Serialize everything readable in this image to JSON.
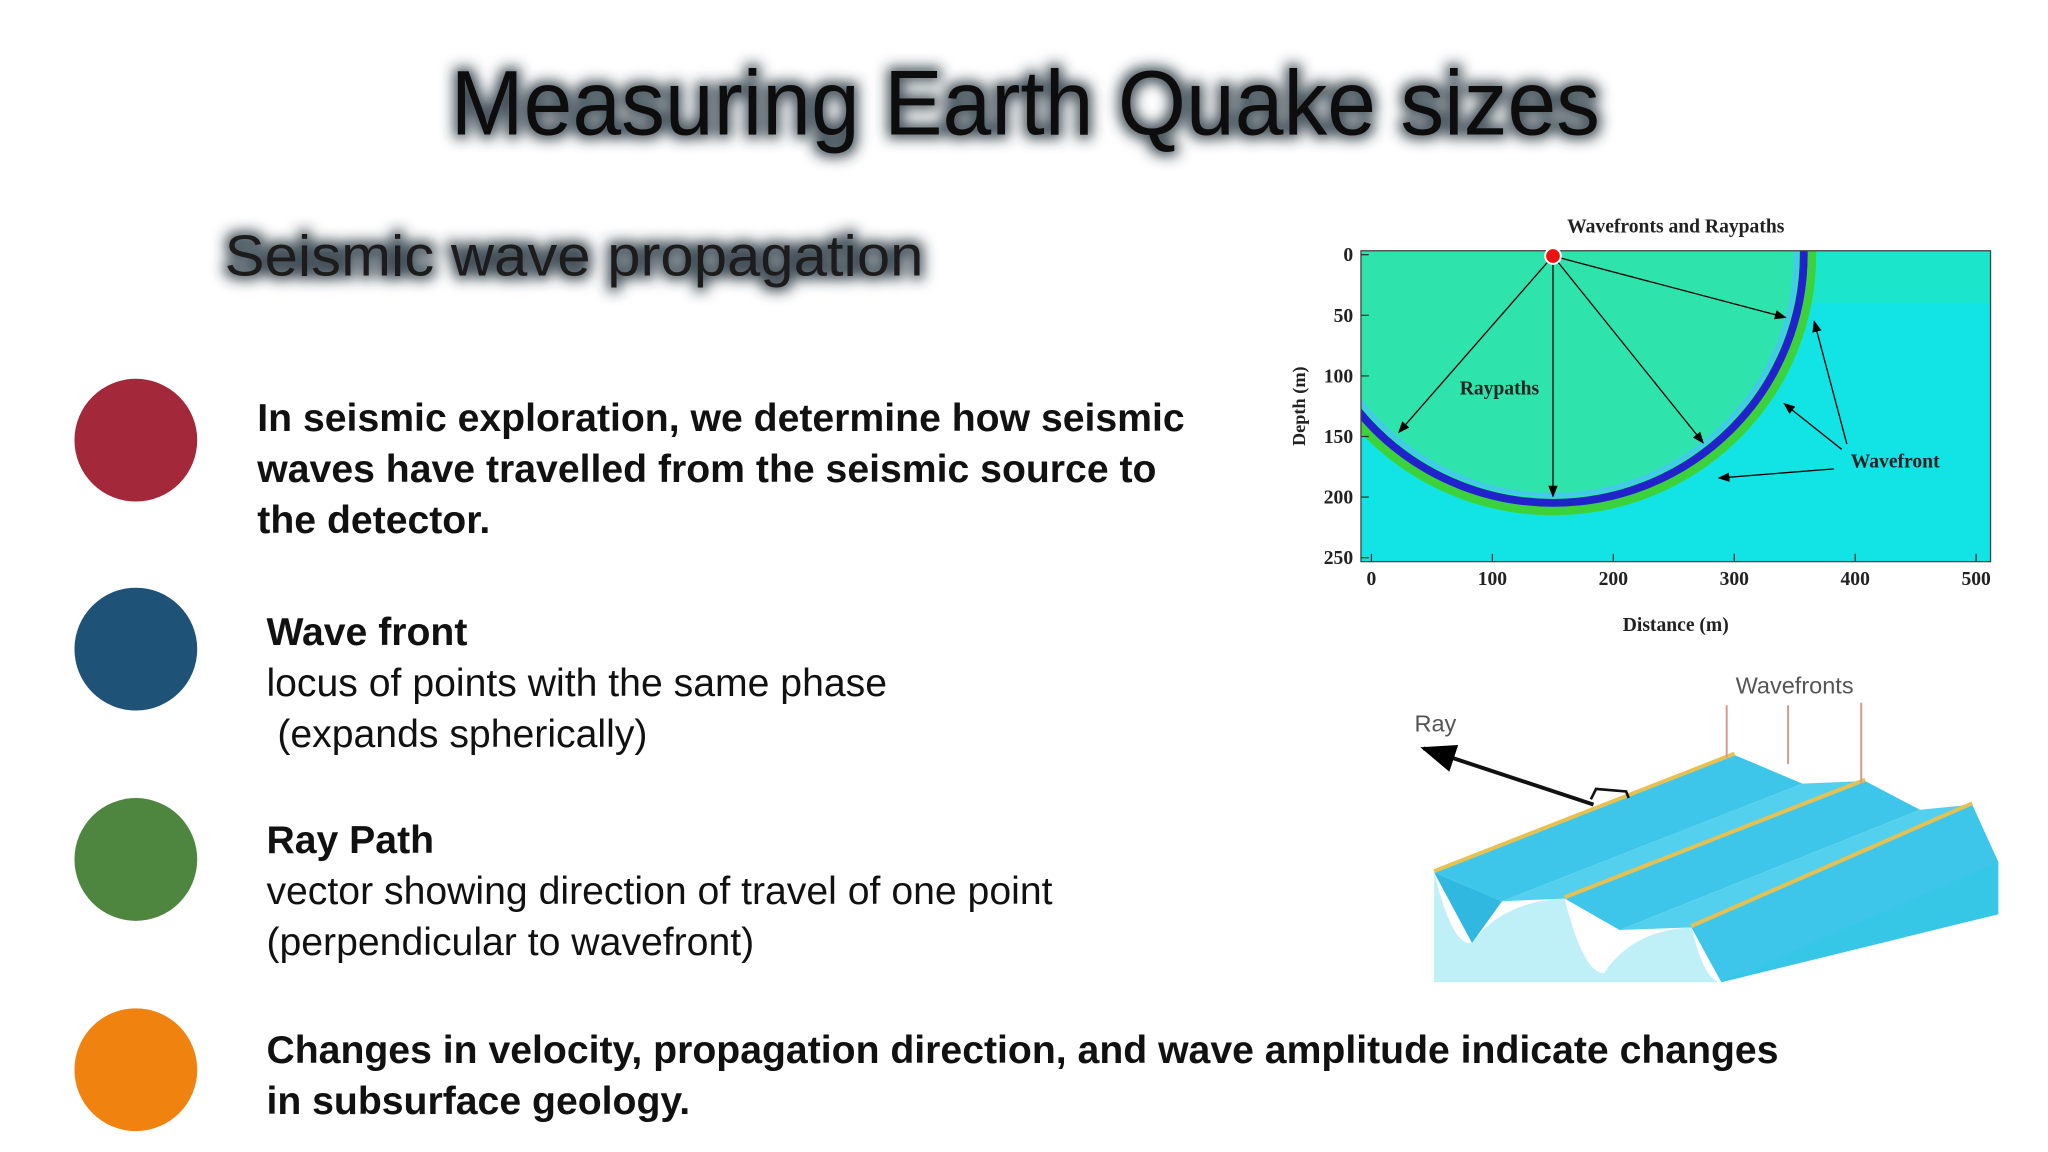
{
  "title": "Measuring Earth Quake sizes",
  "subtitle": "Seismic wave propagation",
  "bullets": [
    {
      "color": "#a3283a",
      "lines": [
        "In seismic exploration, we determine how seismic",
        "waves have travelled from the seismic source to",
        "the detector."
      ]
    },
    {
      "color": "#1f5277",
      "heading": "Wave front",
      "lines": [
        "locus of points with the same phase",
        " (expands spherically)"
      ]
    },
    {
      "color": "#4e8640",
      "heading": "Ray Path",
      "lines": [
        "vector showing direction of travel of one point",
        "(perpendicular to wavefront)"
      ]
    },
    {
      "color": "#f0820f",
      "lines": [
        "Changes in velocity, propagation direction, and wave amplitude indicate changes",
        "in subsurface geology."
      ]
    }
  ],
  "figure_raypaths": {
    "title": "Wavefronts and Raypaths",
    "xlabel": "Distance (m)",
    "ylabel": "Depth (m)",
    "xticks": [
      0,
      100,
      200,
      300,
      400,
      500
    ],
    "yticks": [
      0,
      50,
      100,
      150,
      200,
      250
    ],
    "labels": [
      "Raypaths",
      "Wavefront"
    ]
  },
  "figure_wavefronts": {
    "labels": [
      "Ray",
      "Wavefronts"
    ]
  }
}
